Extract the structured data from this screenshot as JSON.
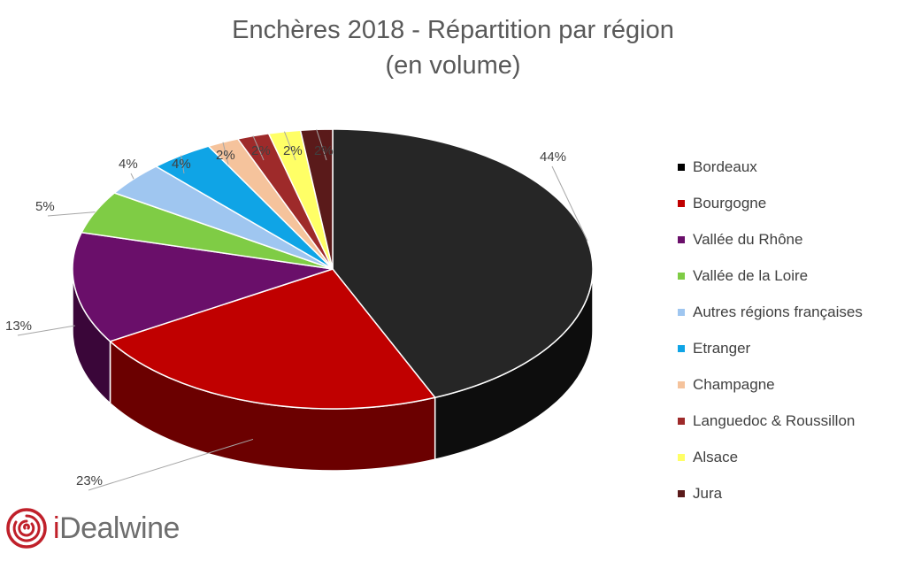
{
  "title": {
    "line1": "Enchères 2018 - Répartition par région",
    "line2": "(en volume)"
  },
  "brand": {
    "name_accent": "i",
    "name_rest": "Dealwine"
  },
  "chart_data": {
    "type": "pie",
    "title": "Enchères 2018 - Répartition par région (en volume)",
    "legend_position": "right",
    "series": [
      {
        "name": "Bordeaux",
        "value": 44,
        "label": "44%",
        "color": "#262626",
        "side_color": "#0d0d0d"
      },
      {
        "name": "Bourgogne",
        "value": 23,
        "label": "23%",
        "color": "#c00000",
        "side_color": "#6b0000"
      },
      {
        "name": "Vallée du Rhône",
        "value": 13,
        "label": "13%",
        "color": "#6a0f6a",
        "side_color": "#3a0639"
      },
      {
        "name": "Vallée de la Loire",
        "value": 5,
        "label": "5%",
        "color": "#7fcc45",
        "side_color": "#4f8a26"
      },
      {
        "name": "Autres régions françaises",
        "value": 4,
        "label": "4%",
        "color": "#9fc6f0",
        "side_color": "#6a93c2"
      },
      {
        "name": "Etranger",
        "value": 4,
        "label": "4%",
        "color": "#0fa4e6",
        "side_color": "#0a6f9c"
      },
      {
        "name": "Champagne",
        "value": 2,
        "label": "2%",
        "color": "#f5c39c",
        "side_color": "#c4916a"
      },
      {
        "name": "Languedoc & Roussillon",
        "value": 2,
        "label": "2%",
        "color": "#9e2a2a",
        "side_color": "#5e1515"
      },
      {
        "name": "Alsace",
        "value": 2,
        "label": "2%",
        "color": "#ffff66",
        "side_color": "#c9c93a"
      },
      {
        "name": "Jura",
        "value": 2,
        "label": "2%",
        "color": "#5a1a1a",
        "side_color": "#2e0b0b"
      }
    ]
  }
}
